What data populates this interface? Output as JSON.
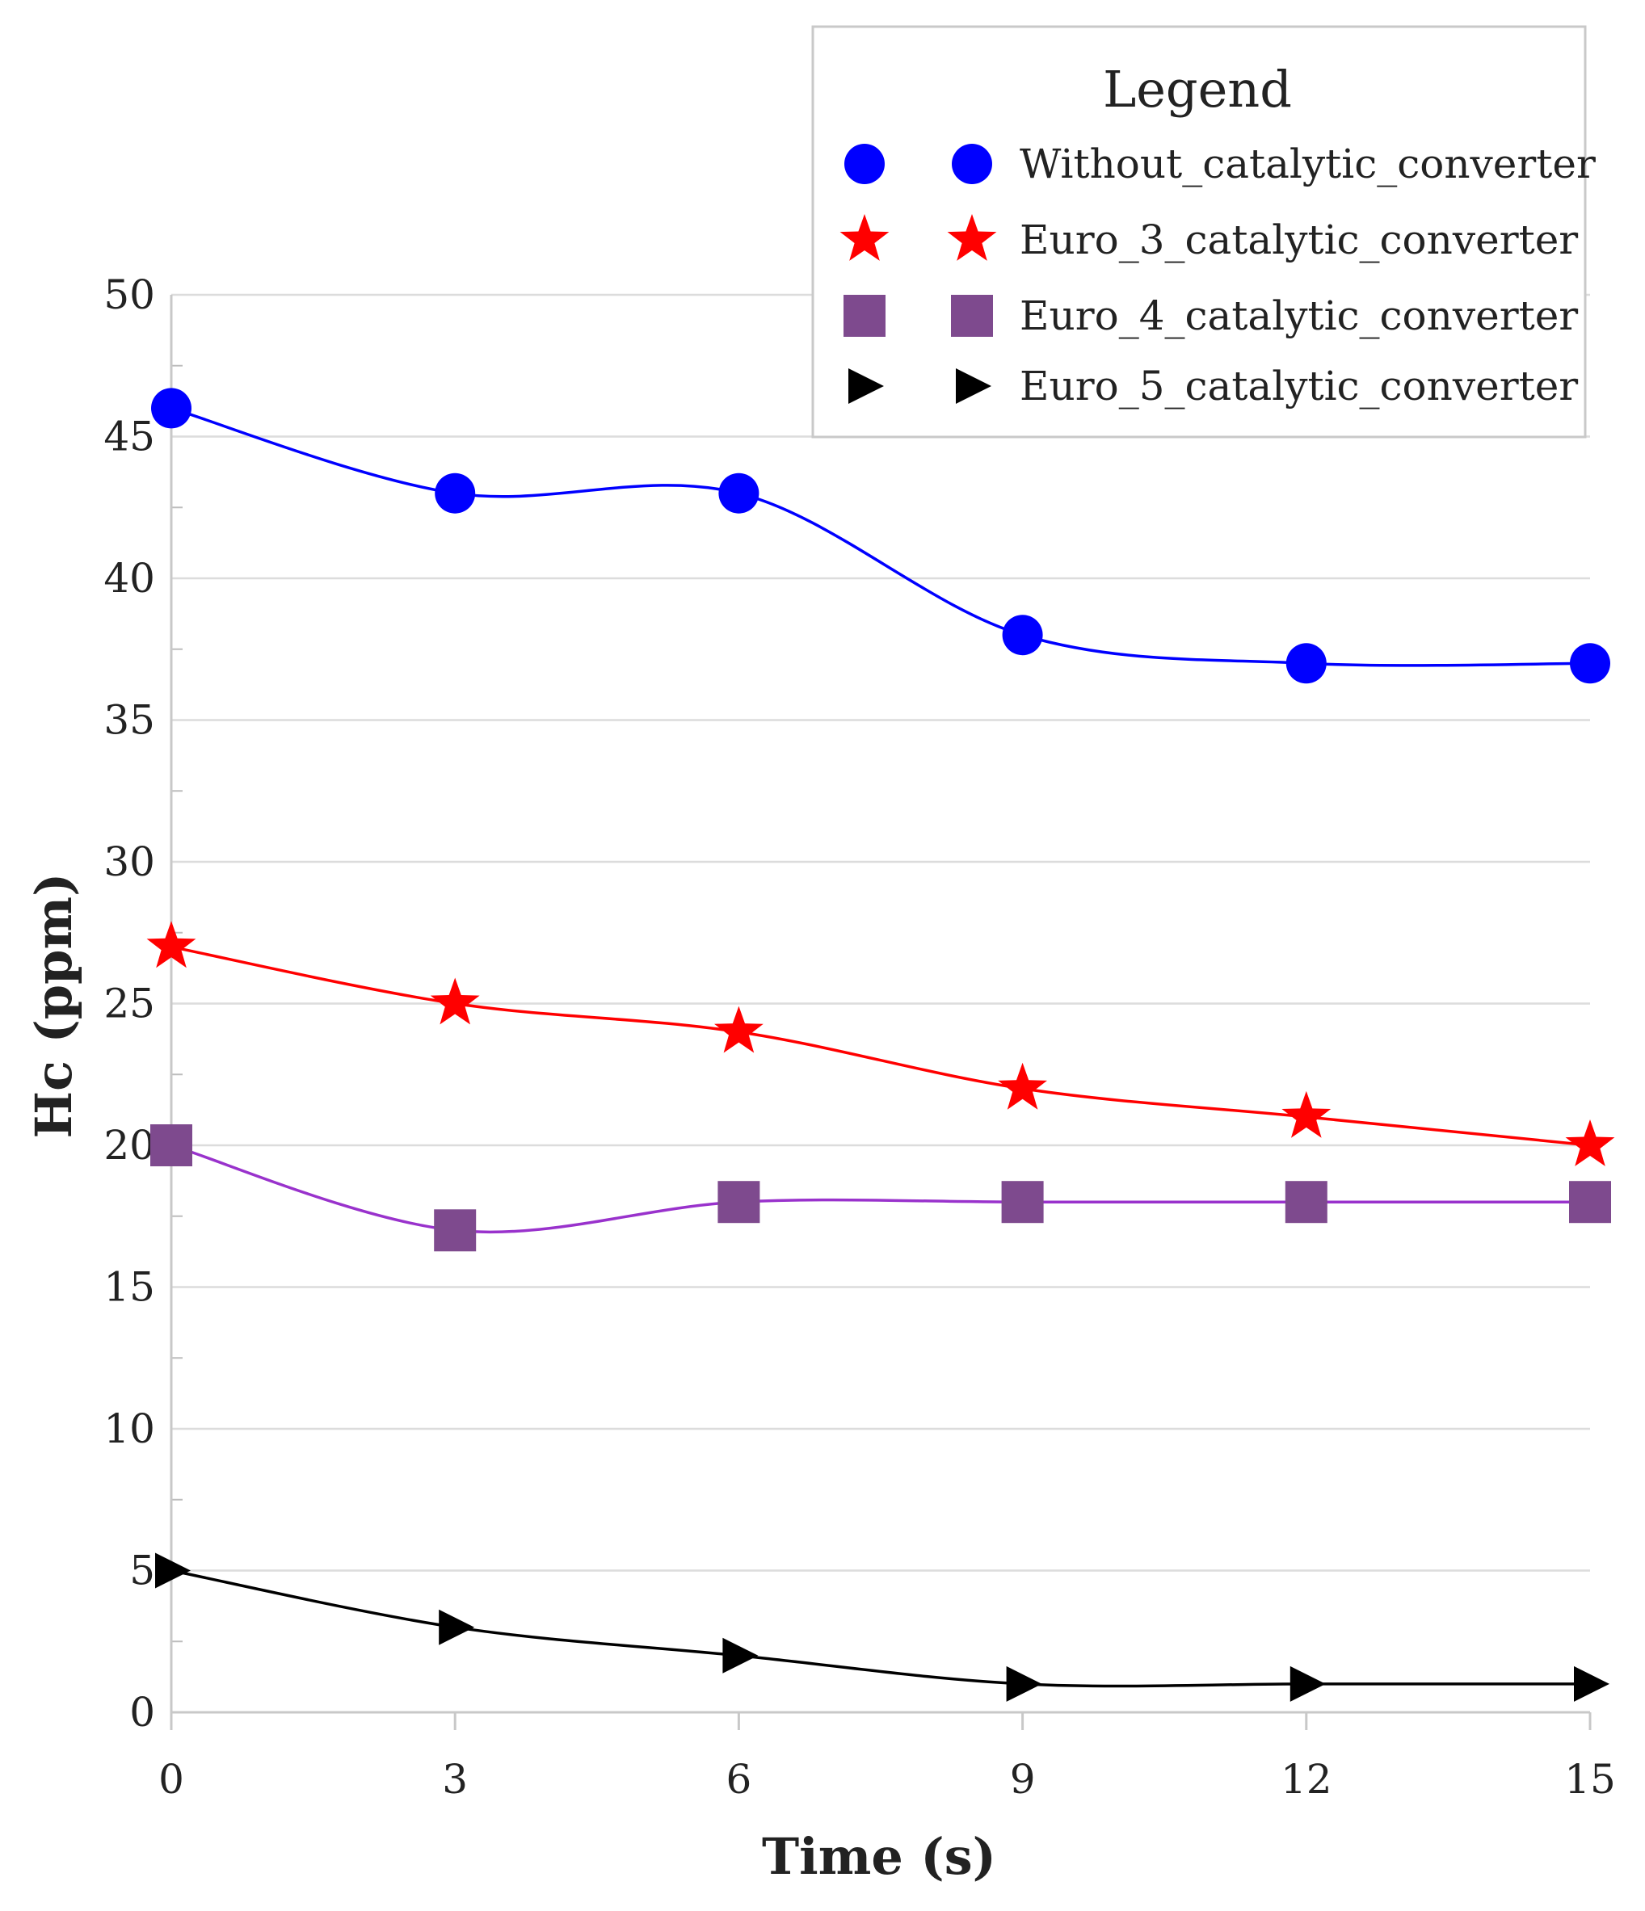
{
  "chart_data": {
    "type": "line",
    "title": "",
    "xlabel": "Time (s)",
    "ylabel": "Hc (ppm)",
    "x": [
      0,
      3,
      6,
      9,
      12,
      15
    ],
    "xticks": [
      "0",
      "3",
      "6",
      "9",
      "12",
      "15"
    ],
    "yticks": [
      "0",
      "5",
      "10",
      "15",
      "20",
      "25",
      "30",
      "35",
      "40",
      "45",
      "50"
    ],
    "xlim": [
      0,
      15
    ],
    "ylim": [
      0,
      50
    ],
    "grid": true,
    "legend": {
      "title": "Legend",
      "position": "top-right"
    },
    "series": [
      {
        "name": "Without_catalytic_converter",
        "values": [
          46,
          43,
          43,
          38,
          37,
          37
        ],
        "color": "#0000ff",
        "marker": "circle"
      },
      {
        "name": "Euro_3_catalytic_converter",
        "values": [
          27,
          25,
          24,
          22,
          21,
          20
        ],
        "color": "#ff0000",
        "marker": "star"
      },
      {
        "name": "Euro_4_catalytic_converter",
        "values": [
          20,
          17,
          18,
          18,
          18,
          18
        ],
        "color": "#7e4a8e",
        "line_color": "#9932cc",
        "marker": "square"
      },
      {
        "name": "Euro_5_catalytic_converter",
        "values": [
          5,
          3,
          2,
          1,
          1,
          1
        ],
        "color": "#000000",
        "marker": "triangle-right"
      }
    ]
  }
}
